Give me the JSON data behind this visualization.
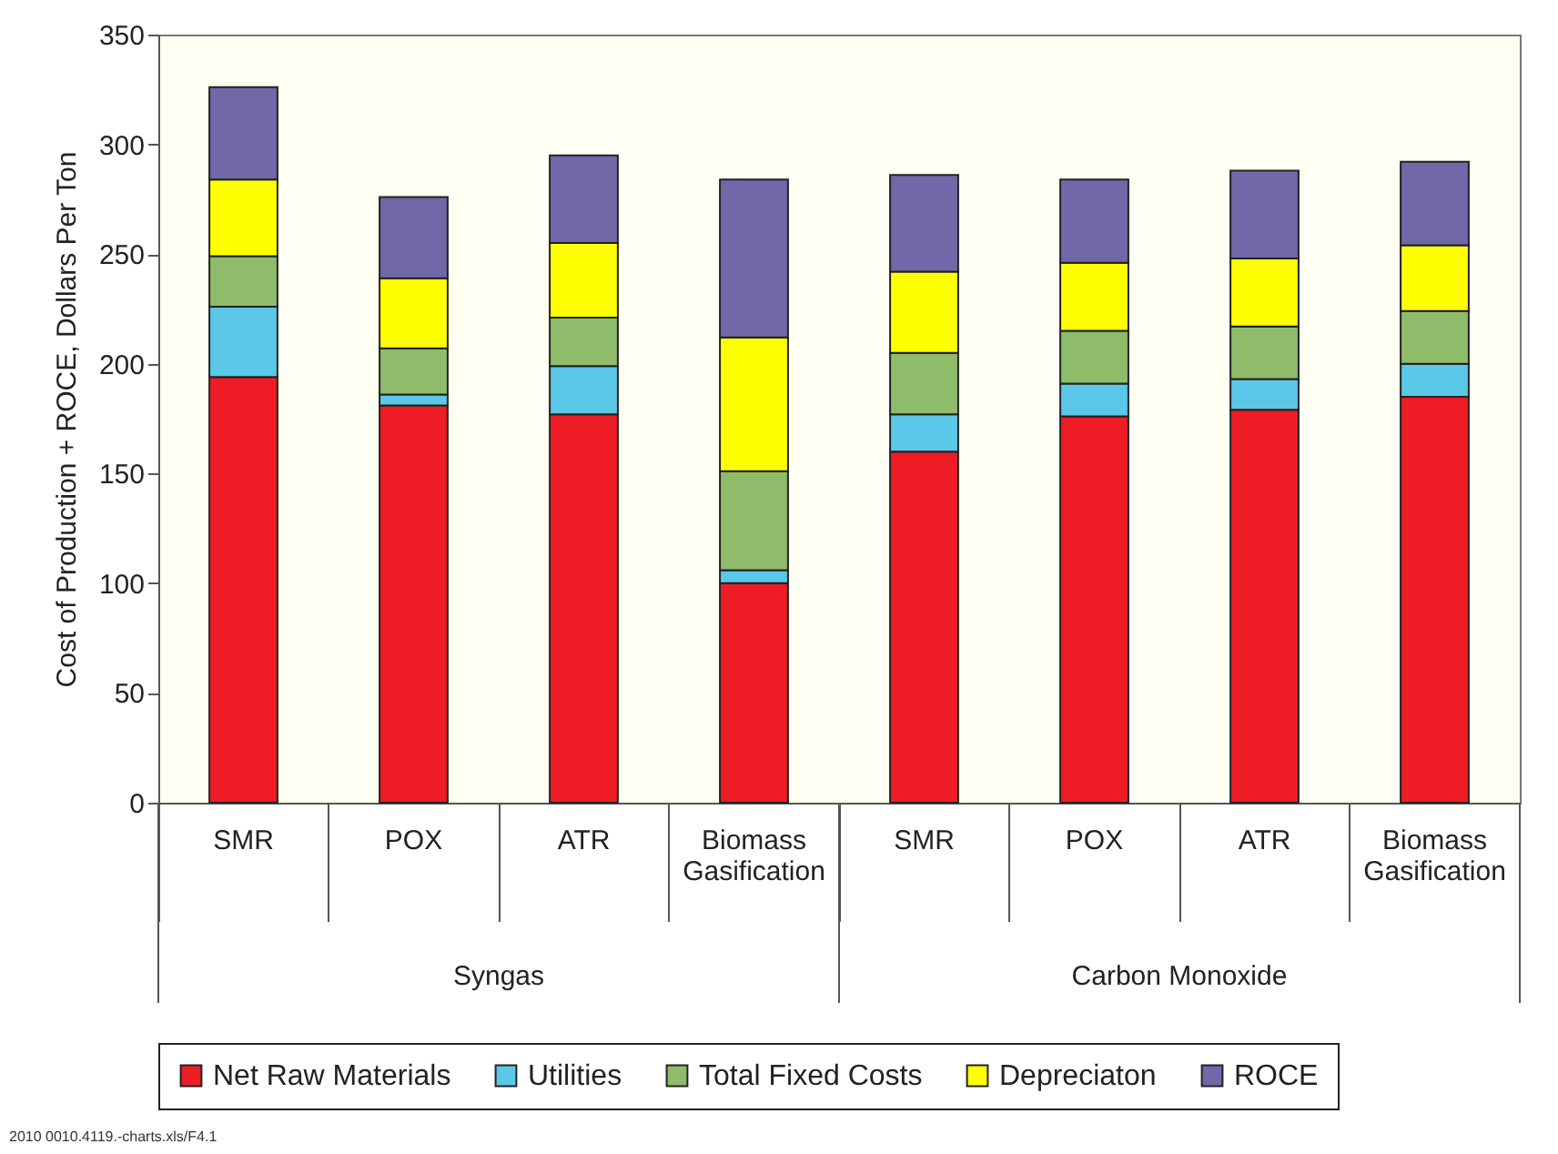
{
  "chart_data": {
    "type": "bar",
    "stacked": true,
    "categories": [
      "SMR",
      "POX",
      "ATR",
      "Biomass Gasification",
      "SMR",
      "POX",
      "ATR",
      "Biomass Gasification"
    ],
    "ylabel": "Cost of Production + ROCE, Dollars Per Ton",
    "ylim": [
      0,
      350
    ],
    "yticks": [
      0,
      50,
      100,
      150,
      200,
      250,
      300,
      350
    ],
    "grid": false,
    "legend": "bottom",
    "series": [
      {
        "name": "Net Raw Materials",
        "color": "#ee1c25",
        "values": [
          194,
          181,
          177,
          100,
          160,
          176,
          179,
          185
        ]
      },
      {
        "name": "Utilities",
        "color": "#5bc8e8",
        "values": [
          32,
          5,
          22,
          6,
          17,
          15,
          14,
          15
        ]
      },
      {
        "name": "Total Fixed Costs",
        "color": "#8fbc6a",
        "values": [
          23,
          21,
          22,
          45,
          28,
          24,
          24,
          24
        ]
      },
      {
        "name": "Depreciaton",
        "color": "#ffff00",
        "values": [
          35,
          32,
          34,
          61,
          37,
          31,
          31,
          30
        ]
      },
      {
        "name": "ROCE",
        "color": "#7068a8",
        "values": [
          42,
          37,
          40,
          72,
          44,
          38,
          40,
          38
        ]
      }
    ],
    "annotations": [
      "Syngas",
      "Carbon Monoxide",
      "2010 0010.4119.-charts.xls/F4.1"
    ]
  }
}
